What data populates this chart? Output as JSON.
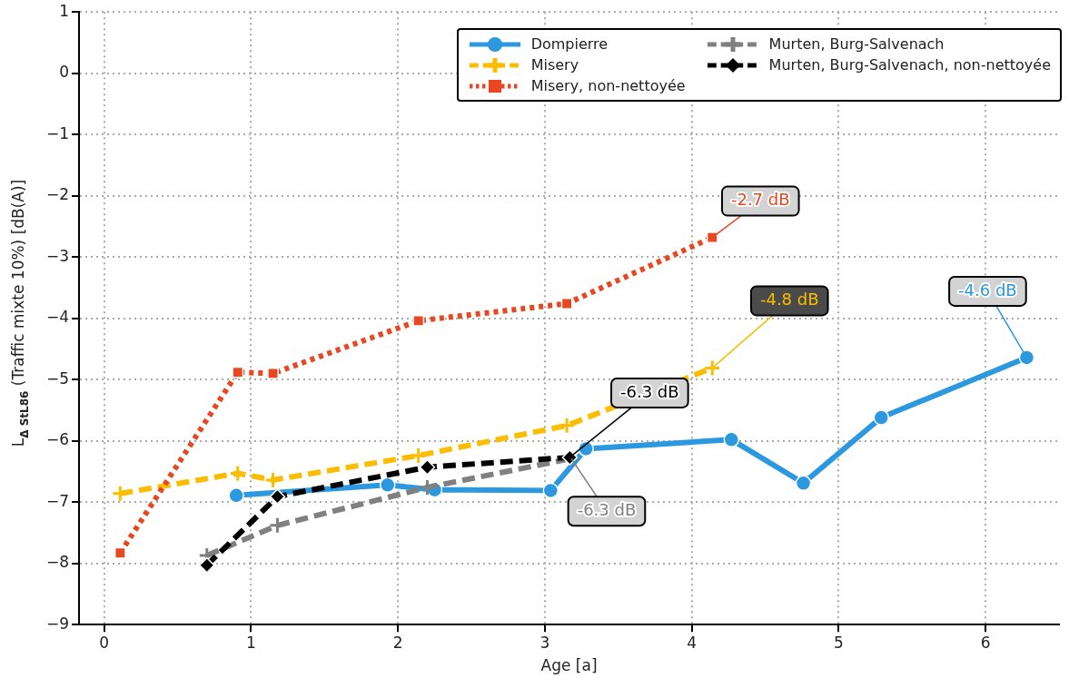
{
  "chart_data": {
    "type": "line",
    "xlabel": "Age [a]",
    "ylabel": "L$_{Δ StL86}$ (Traffic mixte 10%) [dB(A)]",
    "xlim": [
      -0.17,
      6.5
    ],
    "xticks": [
      0,
      1,
      2,
      3,
      4,
      5,
      6
    ],
    "ylim": [
      -9,
      1
    ],
    "yticks": [
      -9,
      -8,
      -7,
      -6,
      -5,
      -4,
      -3,
      -2,
      -1,
      0,
      1
    ],
    "grid": true,
    "legend": "top right",
    "series": [
      {
        "name": "Dompierre",
        "color": "#2b98e0",
        "marker": "circle",
        "line_style": "solid",
        "x": [
          0.9,
          1.93,
          2.25,
          3.04,
          3.28,
          4.27,
          4.76,
          5.29,
          6.28
        ],
        "values": [
          -6.89,
          -6.72,
          -6.8,
          -6.81,
          -6.13,
          -5.98,
          -6.69,
          -5.62,
          -4.64
        ]
      },
      {
        "name": "Misery",
        "color": "#fcbd00",
        "marker": "cross",
        "line_style": "dashed",
        "x": [
          0.11,
          0.91,
          1.15,
          2.14,
          3.15,
          4.14
        ],
        "values": [
          -6.86,
          -6.53,
          -6.64,
          -6.24,
          -5.75,
          -4.81
        ]
      },
      {
        "name": "Misery, non-nettoyée",
        "color": "#e84722",
        "marker": "square",
        "line_style": "dotted",
        "x": [
          0.11,
          0.91,
          1.15,
          2.14,
          3.15,
          4.14
        ],
        "values": [
          -7.83,
          -4.88,
          -4.9,
          -4.04,
          -3.76,
          -2.68
        ]
      },
      {
        "name": "Murten, Burg-Salvenach",
        "color": "#808080",
        "marker": "cross",
        "line_style": "dashed",
        "x": [
          0.7,
          1.18,
          2.2,
          3.18
        ],
        "values": [
          -7.87,
          -7.38,
          -6.76,
          -6.29
        ]
      },
      {
        "name": "Murten, Burg-Salvenach, non-nettoyée",
        "color": "#000000",
        "marker": "diamond",
        "line_style": "dashed",
        "x": [
          0.7,
          1.18,
          2.2,
          3.17
        ],
        "values": [
          -8.03,
          -6.91,
          -6.43,
          -6.27
        ]
      }
    ],
    "annotations": [
      {
        "text": "-2.7 dB",
        "x": 4.14,
        "y": -2.68
      },
      {
        "text": "-4.8 dB",
        "x": 4.14,
        "y": -4.81
      },
      {
        "text": "-4.6 dB",
        "x": 6.28,
        "y": -4.64
      },
      {
        "text": "-6.3 dB",
        "x": 3.17,
        "y": -6.27
      },
      {
        "text": "-6.3 dB",
        "x": 3.18,
        "y": -6.29
      }
    ]
  }
}
